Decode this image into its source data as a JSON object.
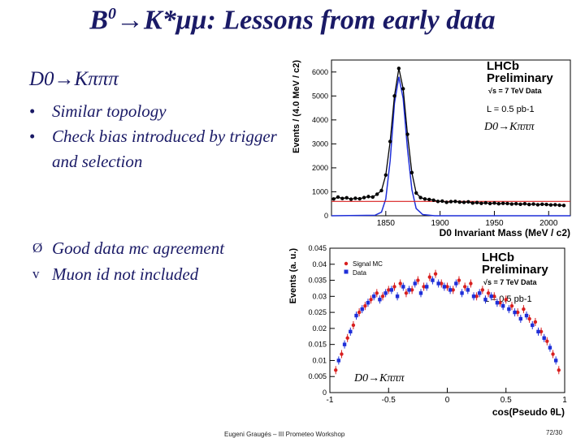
{
  "slide": {
    "title_prefix": "B",
    "title_sup": "0",
    "title_rest": "→K*μμ: Lessons from early data",
    "subheading": "D0→Kπππ",
    "bullets": [
      "Similar topology",
      "Check bias introduced by trigger and selection"
    ],
    "points": [
      {
        "marker": "Ø",
        "text": "Good data mc agreement"
      },
      {
        "marker": "v",
        "text": "Muon id not included"
      }
    ],
    "footer": "Eugeni Graugés – III Prometeo Workshop",
    "page_number": "72/30"
  },
  "chart_data": [
    {
      "type": "line",
      "xlabel": "D0 Invariant Mass (MeV / c2)",
      "ylabel": "Events / (4.0 MeV / c2)",
      "xlim": [
        1800,
        2020
      ],
      "ylim": [
        0,
        6500
      ],
      "xticks": [
        "1850",
        "1900",
        "1950",
        "2000"
      ],
      "yticks": [
        "0",
        "1000",
        "2000",
        "3000",
        "4000",
        "5000",
        "6000"
      ],
      "annotations": [
        "LHCb",
        "Preliminary",
        "√s = 7 TeV Data",
        "L = 0.5 pb-1",
        "D0→Kπππ"
      ],
      "series": [
        {
          "color": "#000000",
          "x": [
            1802,
            1806,
            1810,
            1814,
            1818,
            1822,
            1826,
            1830,
            1834,
            1838,
            1842,
            1846,
            1850,
            1854,
            1858,
            1862,
            1866,
            1870,
            1874,
            1878,
            1882,
            1886,
            1890,
            1894,
            1898,
            1902,
            1906,
            1910,
            1914,
            1918,
            1922,
            1926,
            1930,
            1934,
            1938,
            1942,
            1946,
            1950,
            1954,
            1958,
            1962,
            1966,
            1970,
            1974,
            1978,
            1982,
            1986,
            1990,
            1994,
            1998,
            2002,
            2006,
            2010,
            2014
          ],
          "values": [
            700,
            780,
            720,
            750,
            690,
            730,
            710,
            760,
            800,
            780,
            900,
            1050,
            1700,
            3100,
            5000,
            6150,
            5300,
            3400,
            1800,
            950,
            760,
            700,
            680,
            650,
            600,
            610,
            560,
            590,
            600,
            570,
            560,
            580,
            530,
            550,
            520,
            540,
            510,
            530,
            500,
            520,
            510,
            490,
            500,
            480,
            500,
            470,
            490,
            460,
            480,
            470,
            450,
            460,
            440,
            430
          ]
        },
        {
          "color": "#1f2fd8",
          "x": [
            1800,
            1840,
            1846,
            1850,
            1854,
            1858,
            1862,
            1866,
            1870,
            1874,
            1878,
            1884,
            1895,
            2020
          ],
          "values": [
            0,
            20,
            150,
            700,
            2300,
            4700,
            5800,
            4900,
            2800,
            1100,
            300,
            50,
            0,
            0
          ]
        },
        {
          "color": "#d81f1f",
          "x": [
            1800,
            2020
          ],
          "values": [
            600,
            600
          ]
        }
      ]
    },
    {
      "type": "scatter",
      "xlabel": "cos(Pseudo θL)",
      "ylabel": "Events (a. u.)",
      "xlim": [
        -1,
        1
      ],
      "ylim": [
        0,
        0.045
      ],
      "xticks": [
        "-1",
        "-0.5",
        "0",
        "0.5",
        "1"
      ],
      "yticks": [
        "0",
        "0.005",
        "0.01",
        "0.015",
        "0.02",
        "0.025",
        "0.03",
        "0.035",
        "0.04",
        "0.045"
      ],
      "annotations": [
        "LHCb",
        "Preliminary",
        "√s = 7 TeV Data",
        "L = 0.5 pb-1",
        "D0→Kπππ"
      ],
      "legend_position": "top-left",
      "series": [
        {
          "name": "Signal MC",
          "color": "#d81f1f",
          "x": [
            -0.95,
            -0.9,
            -0.85,
            -0.8,
            -0.75,
            -0.7,
            -0.65,
            -0.6,
            -0.55,
            -0.5,
            -0.45,
            -0.4,
            -0.35,
            -0.3,
            -0.25,
            -0.2,
            -0.15,
            -0.1,
            -0.05,
            0,
            0.05,
            0.1,
            0.15,
            0.2,
            0.25,
            0.3,
            0.35,
            0.4,
            0.45,
            0.5,
            0.55,
            0.6,
            0.65,
            0.7,
            0.75,
            0.8,
            0.85,
            0.9,
            0.95
          ],
          "values": [
            0.007,
            0.012,
            0.017,
            0.021,
            0.025,
            0.027,
            0.029,
            0.031,
            0.03,
            0.032,
            0.033,
            0.034,
            0.031,
            0.032,
            0.035,
            0.033,
            0.036,
            0.037,
            0.034,
            0.033,
            0.032,
            0.035,
            0.033,
            0.034,
            0.03,
            0.032,
            0.031,
            0.03,
            0.028,
            0.029,
            0.027,
            0.025,
            0.026,
            0.023,
            0.022,
            0.019,
            0.016,
            0.012,
            0.007
          ]
        },
        {
          "name": "Data",
          "color": "#1f2fd8",
          "x": [
            -0.925,
            -0.875,
            -0.825,
            -0.775,
            -0.725,
            -0.675,
            -0.625,
            -0.575,
            -0.525,
            -0.475,
            -0.425,
            -0.375,
            -0.325,
            -0.275,
            -0.225,
            -0.175,
            -0.125,
            -0.075,
            -0.025,
            0.025,
            0.075,
            0.125,
            0.175,
            0.225,
            0.275,
            0.325,
            0.375,
            0.425,
            0.475,
            0.525,
            0.575,
            0.625,
            0.675,
            0.725,
            0.775,
            0.825,
            0.875,
            0.925
          ],
          "values": [
            0.01,
            0.015,
            0.019,
            0.024,
            0.026,
            0.028,
            0.03,
            0.029,
            0.031,
            0.032,
            0.03,
            0.033,
            0.032,
            0.034,
            0.031,
            0.033,
            0.035,
            0.034,
            0.033,
            0.032,
            0.034,
            0.031,
            0.032,
            0.03,
            0.031,
            0.029,
            0.03,
            0.028,
            0.027,
            0.026,
            0.025,
            0.023,
            0.024,
            0.021,
            0.019,
            0.017,
            0.014,
            0.01
          ]
        }
      ]
    }
  ]
}
